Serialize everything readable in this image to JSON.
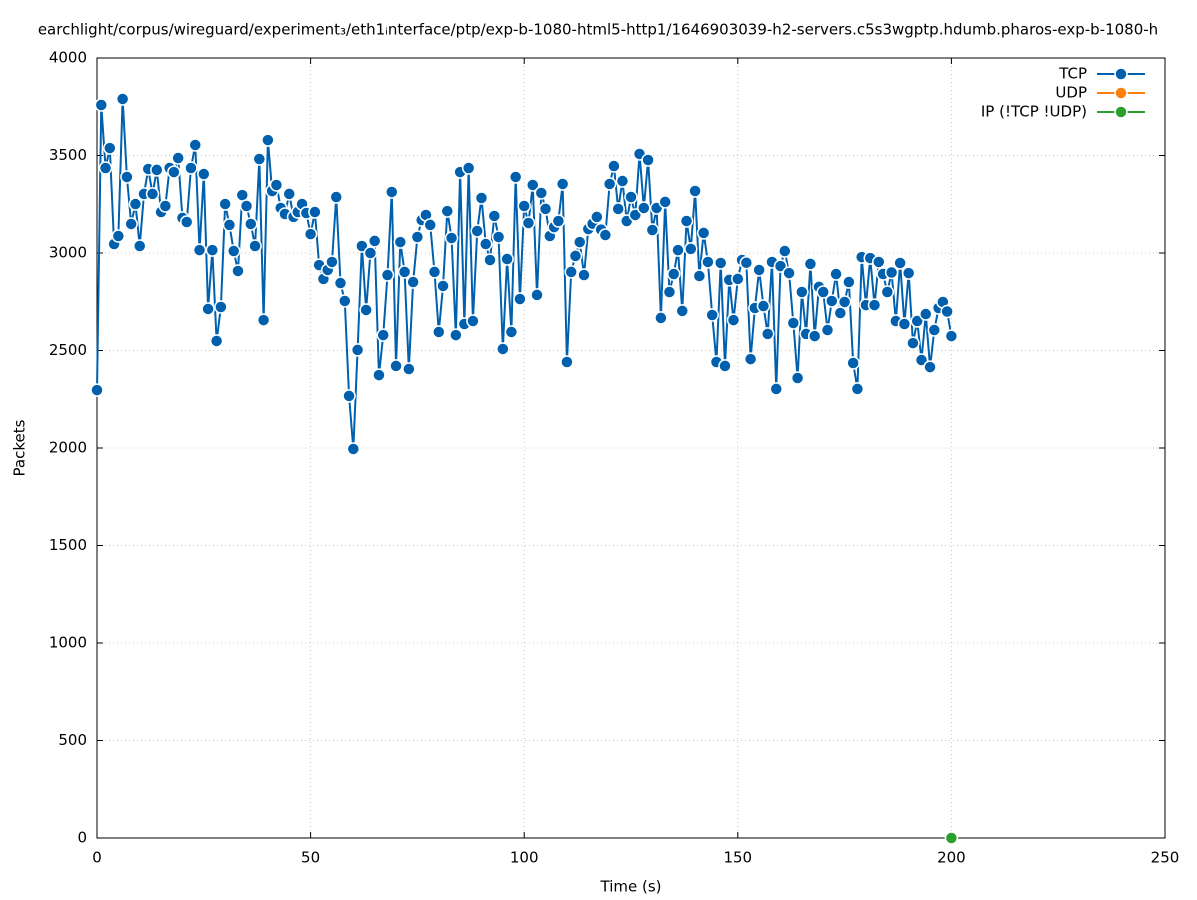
{
  "chart_data": {
    "type": "line",
    "title": "earchlight/corpus/wireguard/experiment₃/eth1ᵢnterface/ptp/exp-b-1080-html5-http1/1646903039-h2-servers.c5s3wgptp.hdumb.pharos-exp-b-1080-h",
    "xlabel": "Time (s)",
    "ylabel": "Packets",
    "xlim": [
      0,
      250
    ],
    "ylim": [
      0,
      4000
    ],
    "xticks": [
      0,
      50,
      100,
      150,
      200,
      250
    ],
    "yticks": [
      0,
      500,
      1000,
      1500,
      2000,
      2500,
      3000,
      3500,
      4000
    ],
    "grid": true,
    "legend": "top-right",
    "series": [
      {
        "name": "TCP",
        "color": "#0060ad",
        "x": [
          0,
          1,
          2,
          3,
          4,
          5,
          6,
          7,
          8,
          9,
          10,
          11,
          12,
          13,
          14,
          15,
          16,
          17,
          18,
          19,
          20,
          21,
          22,
          23,
          24,
          25,
          26,
          27,
          28,
          29,
          30,
          31,
          32,
          33,
          34,
          35,
          36,
          37,
          38,
          39,
          40,
          41,
          42,
          43,
          44,
          45,
          46,
          47,
          48,
          49,
          50,
          51,
          52,
          53,
          54,
          55,
          56,
          57,
          58,
          59,
          60,
          61,
          62,
          63,
          64,
          65,
          66,
          67,
          68,
          69,
          70,
          71,
          72,
          73,
          74,
          75,
          76,
          77,
          78,
          79,
          80,
          81,
          82,
          83,
          84,
          85,
          86,
          87,
          88,
          89,
          90,
          91,
          92,
          93,
          94,
          95,
          96,
          97,
          98,
          99,
          100,
          101,
          102,
          103,
          104,
          105,
          106,
          107,
          108,
          109,
          110,
          111,
          112,
          113,
          114,
          115,
          116,
          117,
          118,
          119,
          120,
          121,
          122,
          123,
          124,
          125,
          126,
          127,
          128,
          129,
          130,
          131,
          132,
          133,
          134,
          135,
          136,
          137,
          138,
          139,
          140,
          141,
          142,
          143,
          144,
          145,
          146,
          147,
          148,
          149,
          150,
          151,
          152,
          153,
          154,
          155,
          156,
          157,
          158,
          159,
          160,
          161,
          162,
          163,
          164,
          165,
          166,
          167,
          168,
          169,
          170,
          171,
          172,
          173,
          174,
          175,
          176,
          177,
          178,
          179,
          180,
          181,
          182,
          183,
          184,
          185,
          186,
          187,
          188,
          189,
          190,
          191,
          192,
          193,
          194,
          195,
          196,
          197,
          198,
          199,
          200
        ],
        "values": [
          2297,
          3759,
          3436,
          3538,
          3046,
          3087,
          3790,
          3390,
          3149,
          3251,
          3036,
          3303,
          3431,
          3303,
          3426,
          3210,
          3241,
          3436,
          3415,
          3487,
          3180,
          3159,
          3436,
          3554,
          3015,
          3405,
          2713,
          3015,
          2549,
          2723,
          3251,
          3144,
          3010,
          2908,
          3297,
          3241,
          3149,
          3036,
          3482,
          2656,
          3579,
          3318,
          3349,
          3231,
          3200,
          3303,
          3185,
          3210,
          3251,
          3205,
          3097,
          3210,
          2938,
          2867,
          2913,
          2954,
          3287,
          2846,
          2754,
          2267,
          1995,
          2503,
          3036,
          2708,
          3000,
          3062,
          2374,
          2579,
          2887,
          3313,
          2421,
          3056,
          2903,
          2405,
          2851,
          3082,
          3169,
          3195,
          3144,
          2903,
          2595,
          2831,
          3215,
          3077,
          2579,
          3415,
          2636,
          3436,
          2651,
          3113,
          3282,
          3046,
          2964,
          3190,
          3082,
          2508,
          2969,
          2595,
          3390,
          2764,
          3241,
          3154,
          3349,
          2785,
          3308,
          3226,
          3087,
          3133,
          3164,
          3354,
          2441,
          2903,
          2985,
          3056,
          2887,
          3123,
          3150,
          3185,
          3120,
          3092,
          3354,
          3446,
          3226,
          3369,
          3164,
          3287,
          3195,
          3508,
          3231,
          3477,
          3118,
          3231,
          2667,
          3262,
          2800,
          2892,
          3015,
          2703,
          3164,
          3021,
          3318,
          2882,
          3103,
          2954,
          2682,
          2441,
          2949,
          2421,
          2862,
          2656,
          2867,
          2964,
          2950,
          2456,
          2718,
          2913,
          2728,
          2585,
          2954,
          2303,
          2933,
          3010,
          2897,
          2641,
          2359,
          2800,
          2585,
          2944,
          2574,
          2826,
          2800,
          2605,
          2754,
          2892,
          2692,
          2749,
          2851,
          2436,
          2303,
          2979,
          2733,
          2974,
          2733,
          2954,
          2892,
          2800,
          2900,
          2651,
          2949,
          2636,
          2897,
          2538,
          2651,
          2451,
          2687,
          2415,
          2605,
          2718,
          2749,
          2700,
          2574
        ]
      },
      {
        "name": "UDP",
        "color": "#ff7f0e",
        "x": [],
        "values": []
      },
      {
        "name": "IP (!TCP  !UDP)",
        "color": "#2ca02c",
        "x": [
          200
        ],
        "values": [
          0
        ]
      }
    ]
  }
}
